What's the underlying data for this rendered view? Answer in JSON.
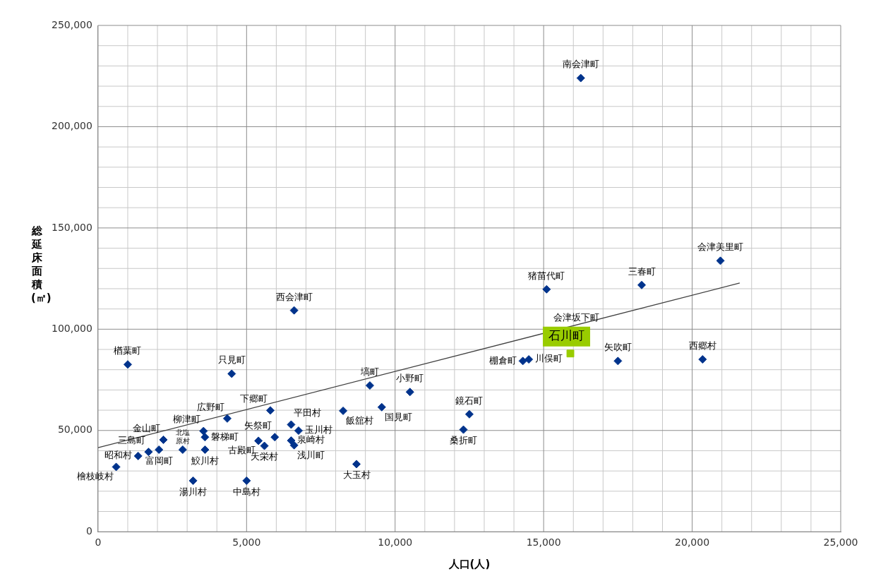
{
  "chart_data": {
    "type": "scatter",
    "xlabel": "人口(人)",
    "ylabel": "総延床面積(㎡)",
    "xlim": [
      0,
      25000
    ],
    "xticks": [
      0,
      {
        "value": 5000,
        "label": "5,000"
      },
      {
        "value": 10000,
        "label": "10,000"
      },
      {
        "value": 15000,
        "label": "15,000"
      },
      {
        "value": 20000,
        "label": "20,000"
      },
      {
        "value": 25000,
        "label": "25,000"
      }
    ],
    "ylim": [
      0,
      250000
    ],
    "yticks": [
      0,
      {
        "value": 50000,
        "label": "50,000"
      },
      {
        "value": 100000,
        "label": "100,000"
      },
      {
        "value": 150000,
        "label": "150,000"
      },
      {
        "value": 200000,
        "label": "200,000"
      },
      {
        "value": 250000,
        "label": "250,000"
      }
    ],
    "grid": true,
    "legend": false,
    "series": [
      {
        "type": "scatter",
        "marker": "diamond",
        "color": "#00338c",
        "x": [
          16250,
          20950,
          18300,
          15100,
          6600,
          20350,
          17500,
          14500,
          14300,
          1000,
          4500,
          9150,
          10500,
          9550,
          8250,
          5800,
          12500,
          4350,
          6500,
          6750,
          12300,
          3550,
          3600,
          5950,
          6500,
          2200,
          5400,
          6600,
          5600,
          2850,
          3600,
          2050,
          1700,
          1350,
          610,
          8700,
          3200,
          5000
        ],
        "values": [
          224000,
          133800,
          121800,
          119700,
          109300,
          85100,
          84300,
          85100,
          84300,
          82600,
          78000,
          72200,
          69000,
          61500,
          59700,
          59900,
          58000,
          55900,
          52900,
          49900,
          50400,
          49700,
          46700,
          46700,
          45000,
          45400,
          44900,
          42700,
          42400,
          40500,
          40500,
          40500,
          39400,
          37400,
          32000,
          33400,
          25200,
          25200
        ],
        "value_labels": [
          "南会津町",
          "会津美里町",
          "三春町",
          "猪苗代町",
          "西会津町",
          "西郷村",
          "矢吹町",
          "川俣町",
          "棚倉町",
          "楢葉町",
          "只見町",
          "塙町",
          "小野町",
          "国見町",
          "飯舘村",
          "下郷町",
          "鏡石町",
          "広野町",
          "平田村",
          "玉川村",
          "桑折町",
          "柳津町",
          "磐梯町",
          "矢祭町",
          "泉崎村",
          "金山町",
          "古殿町",
          "浅川町",
          "天栄村",
          "北塩原村",
          "鮫川村",
          "富岡町",
          "三島町",
          "昭和村",
          "檜枝岐村",
          "大玉村",
          "湯川村",
          "中島村"
        ]
      },
      {
        "type": "scatter",
        "marker": "square",
        "color": "#99cc00",
        "x": [
          15900
        ],
        "values": [
          88000
        ],
        "value_labels": [
          "石川町"
        ]
      },
      {
        "type": "line",
        "marker": "none",
        "color": "#404040",
        "x": [
          0,
          21600
        ],
        "values": [
          41500,
          122800
        ]
      }
    ],
    "annotations": [
      "会津坂下町"
    ]
  }
}
